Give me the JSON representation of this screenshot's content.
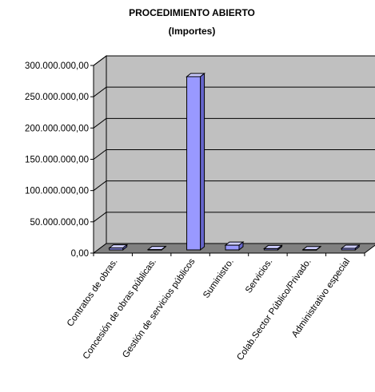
{
  "chart_data": {
    "type": "bar",
    "title": "PROCEDIMIENTO ABIERTO",
    "subtitle": "(Importes)",
    "categories": [
      "Contratos de obras.",
      "Concesión de obras públicas.",
      "Gestión de servicios públicos",
      "Suministro.",
      "Servicios.",
      "Colab.Sector Público/Privado.",
      "Administrativo especial"
    ],
    "values": [
      3000000,
      500000,
      277000000,
      7500000,
      2000000,
      300000,
      2500000
    ],
    "ylim": [
      0,
      300000000
    ],
    "yticks": [
      0,
      50000000,
      100000000,
      150000000,
      200000000,
      250000000,
      300000000
    ],
    "ytick_labels": [
      "0,00",
      "50.000.000,00",
      "100.000.000,00",
      "150.000.000,00",
      "200.000.000,00",
      "250.000.000,00",
      "300.000.000,00"
    ],
    "grid": true,
    "legend": false,
    "three_d": true,
    "colors": {
      "bar_front": "#9999ff",
      "bar_side": "#6666cc",
      "bar_top": "#ccccff",
      "plot_wall": "#c0c0c0",
      "plot_floor": "#808080",
      "grid": "#000000"
    }
  }
}
